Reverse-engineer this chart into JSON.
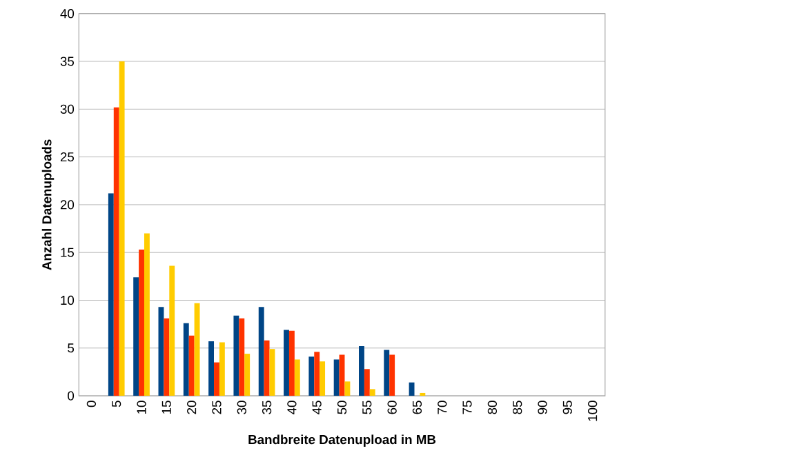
{
  "chart_data": {
    "type": "bar",
    "xlabel": "Bandbreite Datenupload in MB",
    "ylabel": "Anzahl Datenuploads",
    "categories": [
      "0",
      "5",
      "10",
      "15",
      "20",
      "25",
      "30",
      "35",
      "40",
      "45",
      "50",
      "55",
      "60",
      "65",
      "70",
      "75",
      "80",
      "85",
      "90",
      "95",
      "100"
    ],
    "series": [
      {
        "color": "#004586",
        "values": [
          0,
          21.2,
          12.4,
          9.3,
          7.6,
          5.7,
          8.4,
          9.3,
          6.9,
          4.1,
          3.8,
          5.2,
          4.8,
          1.4,
          0,
          0,
          0,
          0,
          0,
          0,
          0
        ]
      },
      {
        "color": "#ff3300",
        "values": [
          0,
          30.2,
          15.3,
          8.1,
          6.3,
          3.5,
          8.1,
          5.8,
          6.8,
          4.6,
          4.3,
          2.8,
          4.3,
          0,
          0,
          0,
          0,
          0,
          0,
          0,
          0
        ]
      },
      {
        "color": "#ffcc00",
        "values": [
          0,
          35.0,
          17.0,
          13.6,
          9.7,
          5.6,
          4.4,
          4.9,
          3.8,
          3.6,
          1.5,
          0.7,
          0,
          0.3,
          0,
          0,
          0,
          0,
          0,
          0,
          0
        ]
      }
    ],
    "ylim": [
      0,
      40
    ],
    "yticks": [
      0,
      5,
      10,
      15,
      20,
      25,
      30,
      35,
      40
    ],
    "grid": "y"
  }
}
